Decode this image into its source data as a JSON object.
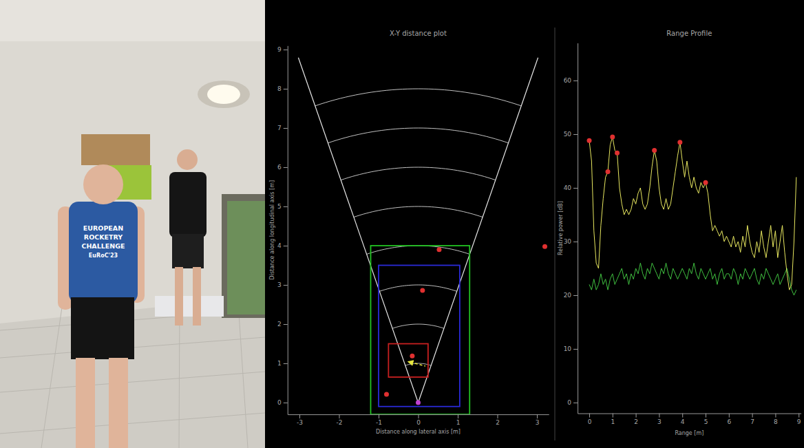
{
  "photo": {
    "shirt_text": [
      "EUROPEAN",
      "ROCKETRY",
      "CHALLENGE",
      "EuRoC'23"
    ]
  },
  "chart_data": [
    {
      "type": "scatter",
      "title": "X-Y distance plot",
      "x_label": "Distance along lateral axis [m]",
      "y_label": "Distance along longitudinal axis [m]",
      "xlim": [
        -3.3,
        3.3
      ],
      "ylim": [
        -0.3,
        9.1
      ],
      "xticks": [
        -3,
        -2,
        -1,
        0,
        1,
        2,
        3
      ],
      "yticks": [
        0,
        1,
        2,
        3,
        4,
        5,
        6,
        7,
        8,
        9
      ],
      "fov_half_angle_deg": 19,
      "fov_range": 9.3,
      "range_rings": [
        1,
        2,
        3,
        4,
        5,
        6,
        7,
        8
      ],
      "zones": [
        {
          "color": "#22c322",
          "x": [
            -1.2,
            1.3
          ],
          "y": [
            -0.3,
            4.0
          ]
        },
        {
          "color": "#2a2ad8",
          "x": [
            -1.0,
            1.05
          ],
          "y": [
            -0.1,
            3.5
          ]
        },
        {
          "color": "#c82020",
          "x": [
            -0.75,
            0.25
          ],
          "y": [
            0.65,
            1.5
          ]
        }
      ],
      "series": [
        {
          "type": "scatter",
          "color": "#e03030",
          "marker": "circle",
          "x": [
            0.53,
            0.11,
            3.2,
            -0.15,
            -0.8
          ],
          "y": [
            3.9,
            2.86,
            3.98,
            1.19,
            0.21
          ]
        },
        {
          "type": "scatter",
          "color": "#c040d0",
          "marker": "circle",
          "x": [
            0
          ],
          "y": [
            0
          ]
        },
        {
          "type": "line",
          "color": "#e8e840",
          "line_style": "dashed",
          "marker": "arrow",
          "x": [
            -0.2,
            0.18
          ],
          "y": [
            1.03,
            0.93
          ]
        }
      ]
    },
    {
      "type": "line",
      "title": "Range Profile",
      "x_label": "Range [m]",
      "y_label": "Relative power [dB]",
      "xlim": [
        -0.5,
        9.1
      ],
      "ylim": [
        -2,
        67
      ],
      "xticks": [
        0,
        1,
        2,
        3,
        4,
        5,
        6,
        7,
        8,
        9
      ],
      "yticks": [
        0,
        10,
        20,
        30,
        40,
        50,
        60
      ],
      "x": [
        0,
        0.1,
        0.2,
        0.3,
        0.4,
        0.5,
        0.6,
        0.7,
        0.8,
        0.9,
        1,
        1.1,
        1.2,
        1.3,
        1.4,
        1.5,
        1.6,
        1.7,
        1.8,
        1.9,
        2,
        2.1,
        2.2,
        2.3,
        2.4,
        2.5,
        2.6,
        2.7,
        2.8,
        2.9,
        3,
        3.1,
        3.2,
        3.3,
        3.4,
        3.5,
        3.6,
        3.7,
        3.8,
        3.9,
        4,
        4.1,
        4.2,
        4.3,
        4.4,
        4.5,
        4.6,
        4.7,
        4.8,
        4.9,
        5,
        5.1,
        5.2,
        5.3,
        5.4,
        5.5,
        5.6,
        5.7,
        5.8,
        5.9,
        6,
        6.1,
        6.2,
        6.3,
        6.4,
        6.5,
        6.6,
        6.7,
        6.8,
        6.9,
        7,
        7.1,
        7.2,
        7.3,
        7.4,
        7.5,
        7.6,
        7.7,
        7.8,
        7.9,
        8,
        8.1,
        8.2,
        8.3,
        8.4,
        8.5,
        8.6,
        8.7,
        8.8,
        8.9
      ],
      "series": [
        {
          "color": "#e8e860",
          "values": [
            48.8,
            45,
            32,
            26,
            25,
            33,
            38,
            42,
            43,
            48,
            49.5,
            47,
            46.5,
            40,
            37,
            35,
            36,
            35,
            36,
            38,
            37,
            39,
            40,
            37,
            36,
            37,
            40,
            44,
            47,
            45,
            40,
            37,
            36,
            38,
            36,
            37,
            40,
            43,
            46,
            48.5,
            45,
            42,
            45,
            42,
            40,
            42,
            40,
            39,
            41,
            40,
            41,
            39,
            35,
            32,
            33,
            32,
            31,
            32,
            30,
            31,
            30,
            29,
            31,
            29,
            30,
            28,
            31,
            29,
            33,
            30,
            28,
            27,
            30,
            28,
            32,
            29,
            27,
            30,
            33,
            29,
            32,
            27,
            30,
            33,
            28,
            24,
            21,
            22,
            30,
            42
          ]
        },
        {
          "color": "#40c040",
          "values": [
            22,
            21,
            23,
            21,
            22,
            24,
            22,
            23,
            21,
            23,
            24,
            22,
            23,
            24,
            25,
            23,
            24,
            22,
            24,
            23,
            25,
            24,
            26,
            24,
            23,
            25,
            24,
            26,
            25,
            24,
            23,
            25,
            24,
            26,
            24,
            23,
            25,
            24,
            23,
            24,
            25,
            24,
            23,
            25,
            24,
            26,
            24,
            23,
            25,
            24,
            23,
            24,
            25,
            23,
            24,
            22,
            24,
            25,
            23,
            24,
            24,
            23,
            25,
            24,
            22,
            24,
            23,
            25,
            24,
            23,
            24,
            25,
            23,
            22,
            24,
            23,
            25,
            24,
            23,
            22,
            23,
            24,
            22,
            23,
            24,
            25,
            23,
            21,
            20,
            21
          ]
        }
      ],
      "peaks": {
        "color": "#e03030",
        "marker": "circle",
        "x": [
          0,
          0.8,
          1.0,
          1.2,
          2.8,
          3.9,
          5.0
        ],
        "values": [
          48.8,
          43,
          49.5,
          46.5,
          47,
          48.5,
          41
        ]
      }
    }
  ]
}
